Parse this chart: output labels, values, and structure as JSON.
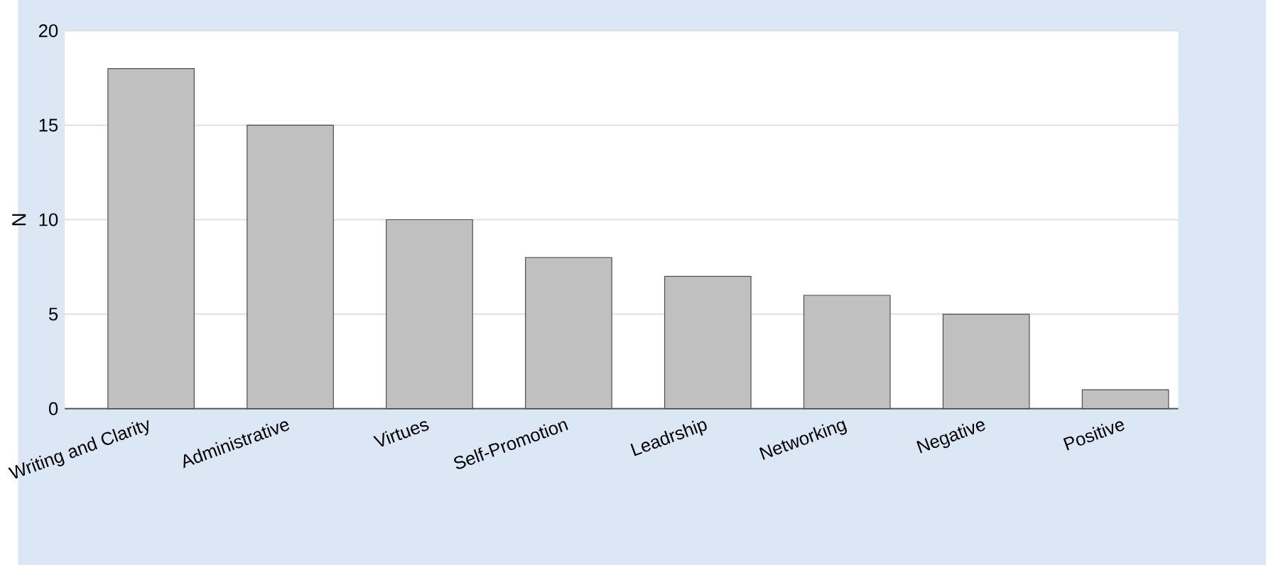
{
  "chart_data": {
    "type": "bar",
    "ylabel": "N",
    "categories": [
      "Writing and Clarity",
      "Administrative",
      "Virtues",
      "Self-Promotion",
      "Leadrship",
      "Networking",
      "Negative",
      "Positive"
    ],
    "values": [
      18,
      15,
      10,
      8,
      7,
      6,
      5,
      1
    ],
    "color": "#c0c0c0",
    "ylim": [
      0,
      20
    ],
    "yticks": [
      0,
      5,
      10,
      15,
      20
    ],
    "grid": "y"
  }
}
